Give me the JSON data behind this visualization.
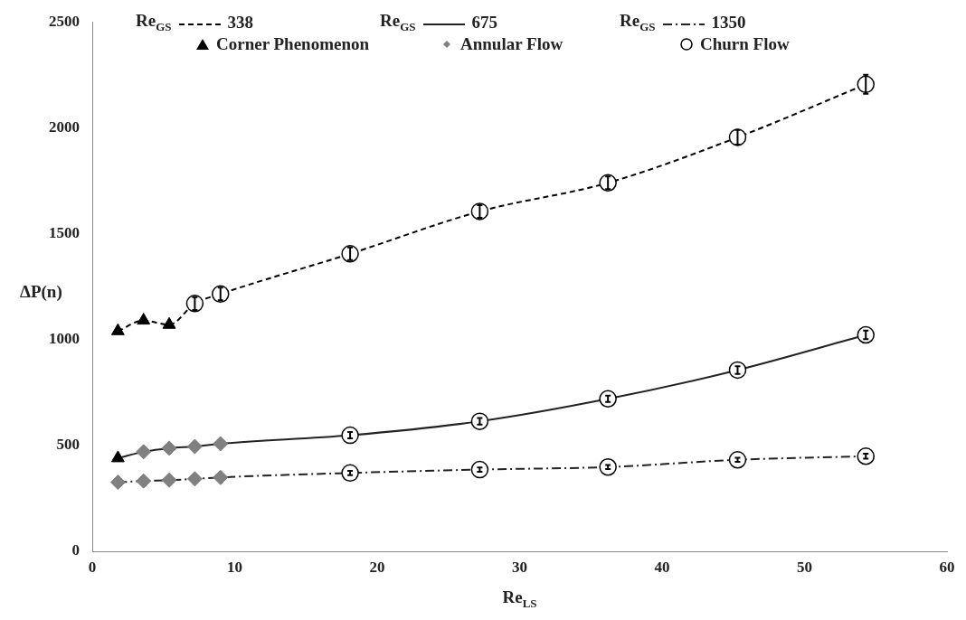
{
  "chart_data": {
    "type": "line",
    "xlabel": "Re$_{LS}$",
    "ylabel": "ΔP(n)",
    "xlim": [
      0,
      60
    ],
    "xticks": [
      0,
      10,
      20,
      30,
      40,
      50,
      60
    ],
    "ylim": [
      0,
      2500
    ],
    "yticks": [
      0,
      500,
      1000,
      1500,
      2000,
      2500
    ],
    "grid": false,
    "legend": "top",
    "series": [
      {
        "name": "Re$_{GS}$ 338",
        "color": "#000000",
        "line_style": "dashed",
        "x": [
          1.8,
          3.6,
          5.4,
          7.2,
          9.0,
          18.1,
          27.2,
          36.2,
          45.3,
          54.3
        ],
        "values": [
          1040,
          1090,
          1070,
          1170,
          1215,
          1405,
          1605,
          1740,
          1955,
          2205
        ]
      },
      {
        "name": "Re$_{GS}$ 675",
        "color": "#222222",
        "line_style": "solid",
        "x": [
          1.8,
          3.6,
          5.4,
          7.2,
          9.0,
          18.1,
          27.2,
          36.2,
          45.3,
          54.3
        ],
        "values": [
          440,
          470,
          487,
          495,
          508,
          548,
          614,
          720,
          856,
          1022
        ]
      },
      {
        "name": "Re$_{GS}$ 1350",
        "color": "#222222",
        "line_style": "dashdot",
        "x": [
          1.8,
          3.6,
          5.4,
          7.2,
          9.0,
          18.1,
          27.2,
          36.2,
          45.3,
          54.3
        ],
        "values": [
          326,
          332,
          336,
          342,
          349,
          370,
          386,
          398,
          432,
          449
        ]
      },
      {
        "name": "Corner Phenomenon",
        "type": "scatter",
        "marker": "triangle",
        "color": "#000000",
        "x": [
          1.8,
          3.6,
          5.4,
          1.8
        ],
        "values": [
          1040,
          1090,
          1070,
          440
        ]
      },
      {
        "name": "Annular Flow",
        "type": "scatter",
        "marker": "diamond",
        "color": "#808080",
        "x": [
          3.6,
          5.4,
          7.2,
          9.0,
          1.8,
          3.6,
          5.4,
          7.2,
          9.0
        ],
        "values": [
          470,
          487,
          495,
          508,
          326,
          332,
          336,
          342,
          349
        ]
      },
      {
        "name": "Churn Flow",
        "type": "scatter",
        "marker": "circle",
        "color": "#000000",
        "x": [
          7.2,
          9.0,
          18.1,
          27.2,
          36.2,
          45.3,
          54.3,
          18.1,
          27.2,
          36.2,
          45.3,
          54.3,
          18.1,
          27.2,
          36.2,
          45.3,
          54.3
        ],
        "values": [
          1170,
          1215,
          1405,
          1605,
          1740,
          1955,
          2205,
          548,
          614,
          720,
          856,
          1022,
          370,
          386,
          398,
          432,
          449
        ],
        "errors": [
          30,
          30,
          30,
          30,
          30,
          35,
          45,
          15,
          15,
          15,
          18,
          20,
          10,
          10,
          10,
          10,
          12
        ]
      }
    ]
  }
}
